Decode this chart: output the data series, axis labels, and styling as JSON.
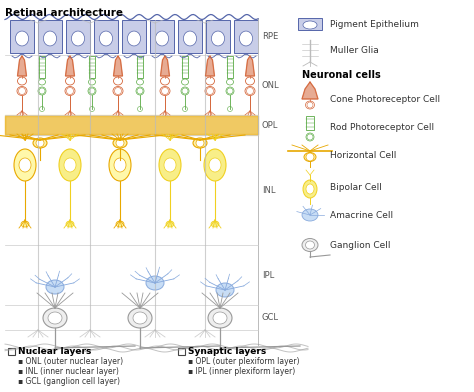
{
  "title": "Retinal architecture",
  "bg_color": "#ffffff",
  "fig_w": 4.74,
  "fig_h": 3.92,
  "dpi": 100,
  "rpe_color": "#5566aa",
  "rpe_fill": "#c8cde8",
  "cone_color": "#d4663a",
  "rod_color": "#5aaa44",
  "horizontal_color": "#e8a800",
  "bipolar_color": "#f0d020",
  "bipolar_fill": "#f8ee88",
  "amacrine_color": "#88aadd",
  "amacrine_fill": "#c8ddf5",
  "ganglion_color": "#999999",
  "muller_color": "#bbbbbb",
  "layer_label_color": "#555555",
  "legend_items": [
    {
      "label": "Pigment Epithelium",
      "color": "#5566aa"
    },
    {
      "label": "Muller Glia",
      "color": "#bbbbbb"
    },
    {
      "label": "Neuronal cells",
      "color": "#000000",
      "bold": true
    },
    {
      "label": "Cone Photoreceptor Cell",
      "color": "#d4663a"
    },
    {
      "label": "Rod Photoreceptor Cell",
      "color": "#5aaa44"
    },
    {
      "label": "Horizontal Cell",
      "color": "#e8a800"
    },
    {
      "label": "Bipolar Cell",
      "color": "#f0d020"
    },
    {
      "label": "Amacrine Cell",
      "color": "#88aadd"
    },
    {
      "label": "Ganglion Cell",
      "color": "#999999"
    }
  ],
  "nuclear_layers_title": "Nuclear layers",
  "nuclear_layers": [
    "ONL (outer nuclear layer)",
    "INL (inner nuclear layer)",
    "GCL (ganglion cell layer)"
  ],
  "synaptic_layers_title": "Synaptic layers",
  "synaptic_layers": [
    "OPL (outer plexiform layer)",
    "IPL (inner plexiform layer)"
  ]
}
